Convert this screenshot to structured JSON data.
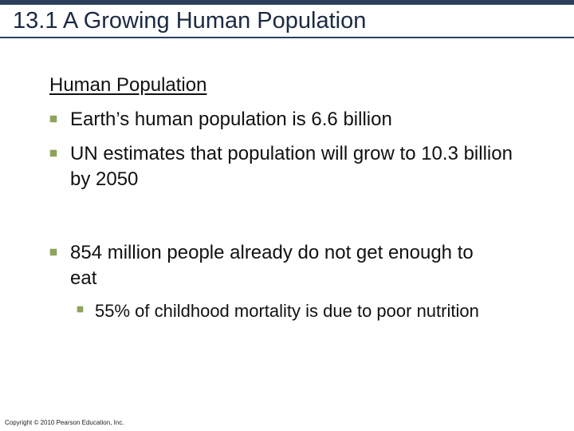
{
  "slide": {
    "title": "13.1 A Growing Human Population",
    "section_heading": "Human Population",
    "bullets": [
      {
        "text": "Earth’s human population is 6.6 billion"
      },
      {
        "text": "UN estimates that population will grow to 10.3 billion by 2050"
      },
      {
        "text": "854 million people already do not get enough to eat"
      }
    ],
    "sub_bullets": [
      {
        "text": "55% of childhood mortality is due to poor nutrition"
      }
    ],
    "copyright": "Copyright © 2010 Pearson Education, Inc."
  },
  "colors": {
    "title_bar": "#2b3f5c",
    "bullet_marker": "#8ea35b",
    "text": "#111111"
  },
  "icons": {
    "bullet_marker": "square-bullet-icon"
  }
}
